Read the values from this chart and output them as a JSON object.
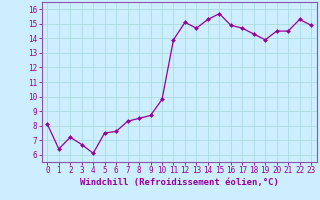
{
  "x": [
    0,
    1,
    2,
    3,
    4,
    5,
    6,
    7,
    8,
    9,
    10,
    11,
    12,
    13,
    14,
    15,
    16,
    17,
    18,
    19,
    20,
    21,
    22,
    23
  ],
  "y": [
    8.1,
    6.4,
    7.2,
    6.7,
    6.1,
    7.5,
    7.6,
    8.3,
    8.5,
    8.7,
    9.8,
    13.9,
    15.1,
    14.7,
    15.3,
    15.7,
    14.9,
    14.7,
    14.3,
    13.9,
    14.5,
    14.5,
    15.3,
    14.9
  ],
  "line_color": "#990099",
  "marker": "D",
  "markersize": 2.0,
  "linewidth": 0.9,
  "xlabel": "Windchill (Refroidissement éolien,°C)",
  "xlabel_fontsize": 6.5,
  "xlim": [
    -0.5,
    23.5
  ],
  "ylim": [
    5.5,
    16.5
  ],
  "yticks": [
    6,
    7,
    8,
    9,
    10,
    11,
    12,
    13,
    14,
    15,
    16
  ],
  "xticks": [
    0,
    1,
    2,
    3,
    4,
    5,
    6,
    7,
    8,
    9,
    10,
    11,
    12,
    13,
    14,
    15,
    16,
    17,
    18,
    19,
    20,
    21,
    22,
    23
  ],
  "tick_fontsize": 5.5,
  "grid_color": "#aadddd",
  "bg_color": "#cceeff",
  "spine_color": "#8855aa",
  "label_color": "#990099"
}
